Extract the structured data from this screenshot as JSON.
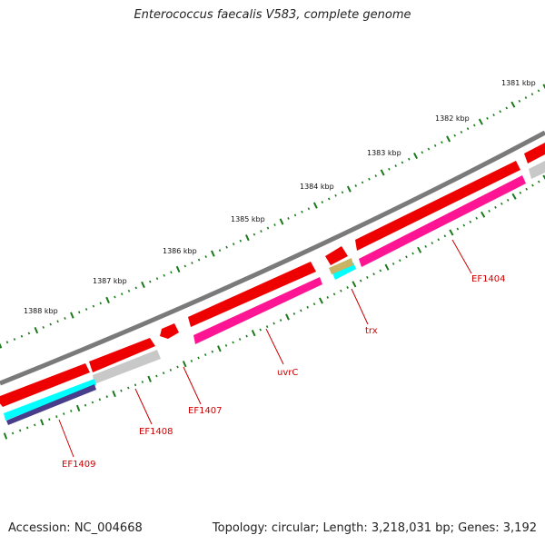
{
  "map": {
    "title": "Enterococcus faecalis V583, complete genome",
    "accession": "Accession: NC_004668",
    "summary": "Topology: circular; Length: 3,218,031 bp; Genes: 3,192",
    "colors": {
      "backbone": "#808080",
      "cds": "#ff0000",
      "feature_magenta": "#ff1493",
      "feature_gray": "#c0c0c0",
      "feature_cyan": "#00ffff",
      "feature_navy": "#483d8b",
      "feature_tan": "#c8b464",
      "tick": "#1a7a1a",
      "gene_label": "#cc0000"
    }
  },
  "kbp_labels": [
    "1381 kbp",
    "1382 kbp",
    "1383 kbp",
    "1384 kbp",
    "1385 kbp",
    "1386 kbp",
    "1387 kbp",
    "1388 kbp"
  ],
  "genes": [
    "EF1404",
    "trx",
    "uvrC",
    "EF1407",
    "EF1408",
    "EF1409"
  ]
}
